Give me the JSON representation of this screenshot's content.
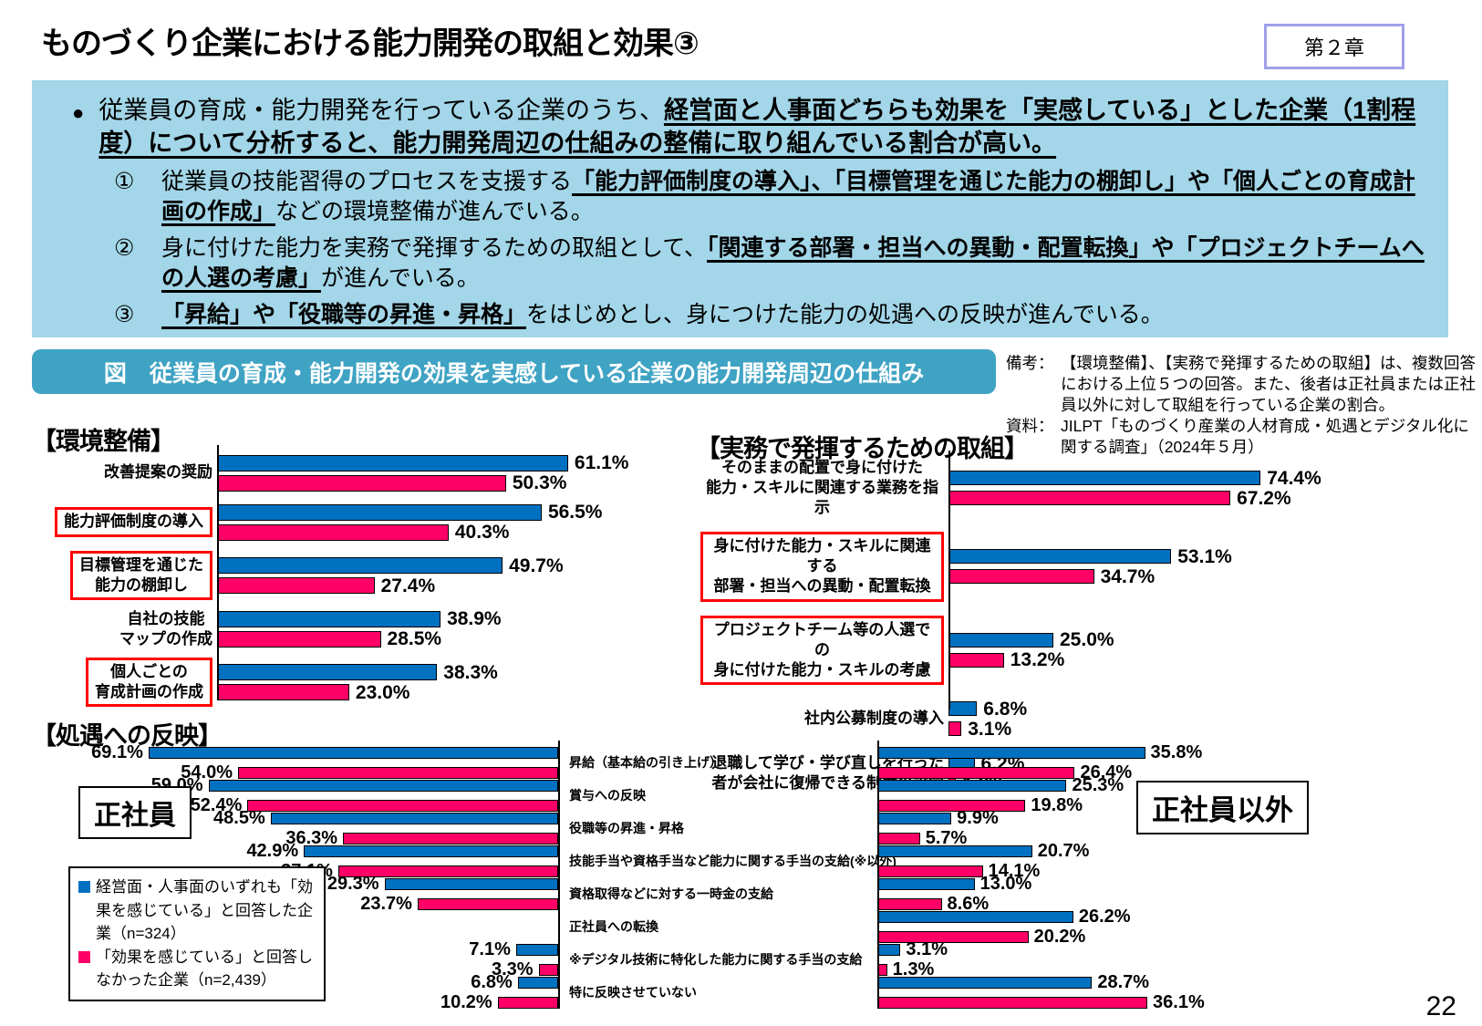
{
  "header": {
    "title": "ものづくり企業における能力開発の取組と効果③",
    "chapter_badge": "第２章"
  },
  "page_number": "22",
  "colors": {
    "blue": "#0070C0",
    "pink": "#FF0066",
    "box_red": "#FF0000",
    "summary_bg": "#A2D6E8",
    "figbar_bg": "#3FA3C4",
    "badge_border": "#9FA0E8"
  },
  "summary": {
    "main": [
      {
        "t": "従業員の育成・能力開発を行っている企業のうち、",
        "b": false,
        "u": false
      },
      {
        "t": "経営面と人事面どちらも効果を「実感している」とした企業（1割程度）について分析すると、能力開発周辺の仕組みの整備に取り組んでいる割合が高い。",
        "b": true,
        "u": true
      }
    ],
    "items": [
      {
        "num": "①",
        "segments": [
          {
            "t": "従業員の技能習得のプロセスを支援する",
            "b": false,
            "u": false
          },
          {
            "t": "「能力評価制度の導入」、「目標管理を通じた能力の棚卸し」や「個人ごとの育成計画の作成」",
            "b": true,
            "u": true
          },
          {
            "t": "などの環境整備が進んでいる。",
            "b": false,
            "u": false
          }
        ]
      },
      {
        "num": "②",
        "segments": [
          {
            "t": "身に付けた能力を実務で発揮するための取組として、",
            "b": false,
            "u": false
          },
          {
            "t": "「関連する部署・担当への異動・配置転換」や「プロジェクトチームへの人選の考慮」",
            "b": true,
            "u": true
          },
          {
            "t": "が進んでいる。",
            "b": false,
            "u": false
          }
        ]
      },
      {
        "num": "③",
        "segments": [
          {
            "t": "「昇給」や「役職等の昇進・昇格」",
            "b": true,
            "u": true
          },
          {
            "t": "をはじめとし、身につけた能力の処遇への反映が進んでいる。",
            "b": false,
            "u": false
          }
        ]
      }
    ]
  },
  "figure": {
    "title": "図　従業員の育成・能力開発の効果を実感している企業の能力開発周辺の仕組み"
  },
  "notes": {
    "biko_label": "備考：",
    "biko": "【環境整備】、【実務で発揮するための取組】は、複数回答における上位５つの回答。また、後者は正社員または正社員以外に対して取組を行っている企業の割合。",
    "shiryo_label": "資料：",
    "shiryo": "JILPT「ものづくり産業の人材育成・処遇とデジタル化に関する調査」（2024年５月）"
  },
  "legend": {
    "items": [
      {
        "color": "#0070C0",
        "text": "経営面・人事面のいずれも「効果を感じている」と回答した企業（n=324）"
      },
      {
        "color": "#FF0066",
        "text": "「効果を感じている」と回答しなかった企業（n=2,439）"
      }
    ]
  },
  "labels": {
    "seishain": "正社員",
    "seishain_igai": "正社員以外"
  },
  "chart_data": [
    {
      "type": "bar",
      "title": "【環境整備】",
      "unit": "%",
      "legend_position": "bottom-left legend box shared",
      "series_names": [
        "効果を感じていると回答した企業(n=324)",
        "効果を感じていると回答しなかった企業(n=2,439)"
      ],
      "rows": [
        {
          "label": [
            "改善提案の奨励"
          ],
          "boxed": false,
          "values": [
            61.1,
            50.3
          ]
        },
        {
          "label": [
            "能力評価制度の導入"
          ],
          "boxed": true,
          "values": [
            56.5,
            40.3
          ]
        },
        {
          "label": [
            "目標管理を通じた",
            "能力の棚卸し"
          ],
          "boxed": true,
          "values": [
            49.7,
            27.4
          ]
        },
        {
          "label": [
            "自社の技能",
            "マップの作成"
          ],
          "boxed": false,
          "values": [
            38.9,
            28.5
          ]
        },
        {
          "label": [
            "個人ごとの",
            "育成計画の作成"
          ],
          "boxed": true,
          "values": [
            38.3,
            23.0
          ]
        }
      ]
    },
    {
      "type": "bar",
      "title": "【実務で発揮するための取組】",
      "unit": "%",
      "series_names": [
        "効果を感じていると回答した企業(n=324)",
        "効果を感じていると回答しなかった企業(n=2,439)"
      ],
      "rows": [
        {
          "label": [
            "そのままの配置で身に付けた",
            "能力・スキルに関連する業務を指示"
          ],
          "boxed": false,
          "values": [
            74.4,
            67.2
          ]
        },
        {
          "label": [
            "身に付けた能力・スキルに関連する",
            "部署・担当への異動・配置転換"
          ],
          "boxed": true,
          "values": [
            53.1,
            34.7
          ]
        },
        {
          "label": [
            "プロジェクトチーム等の人選での",
            "身に付けた能力・スキルの考慮"
          ],
          "boxed": true,
          "values": [
            25.0,
            13.2
          ]
        },
        {
          "label": [
            "社内公募制度の導入"
          ],
          "boxed": false,
          "values": [
            6.8,
            3.1
          ]
        },
        {
          "label": [
            "退職して学び・学び直しを行った",
            "者が会社に復帰できる制度の設定"
          ],
          "boxed": false,
          "values": [
            6.2,
            1.8
          ]
        }
      ]
    },
    {
      "type": "bar",
      "title": "【処遇への反映】",
      "unit": "%",
      "groups": [
        "正社員",
        "正社員以外"
      ],
      "series_names": [
        "効果を感じていると回答した企業(n=324)",
        "効果を感じていると回答しなかった企業(n=2,439)"
      ],
      "rows": [
        {
          "label": "昇給（基本給の引き上げ）",
          "seishain": [
            69.1,
            54.0
          ],
          "hiseishain": [
            35.8,
            26.4
          ]
        },
        {
          "label": "賞与への反映",
          "seishain": [
            59.0,
            52.4
          ],
          "hiseishain": [
            25.3,
            19.8
          ]
        },
        {
          "label": "役職等の昇進・昇格",
          "seishain": [
            48.5,
            36.3
          ],
          "hiseishain": [
            9.9,
            5.7
          ]
        },
        {
          "label": "技能手当や資格手当など能力に関する手当の支給(※以外)",
          "seishain": [
            42.9,
            37.1
          ],
          "hiseishain": [
            20.7,
            14.1
          ]
        },
        {
          "label": "資格取得などに対する一時金の支給",
          "seishain": [
            29.3,
            23.7
          ],
          "hiseishain": [
            13.0,
            8.6
          ]
        },
        {
          "label": "正社員への転換",
          "seishain": null,
          "hiseishain": [
            26.2,
            20.2
          ]
        },
        {
          "label": "※デジタル技術に特化した能力に関する手当の支給",
          "seishain": [
            7.1,
            3.3
          ],
          "hiseishain": [
            3.1,
            1.3
          ]
        },
        {
          "label": "特に反映させていない",
          "seishain": [
            6.8,
            10.2
          ],
          "hiseishain": [
            28.7,
            36.1
          ]
        }
      ]
    }
  ]
}
